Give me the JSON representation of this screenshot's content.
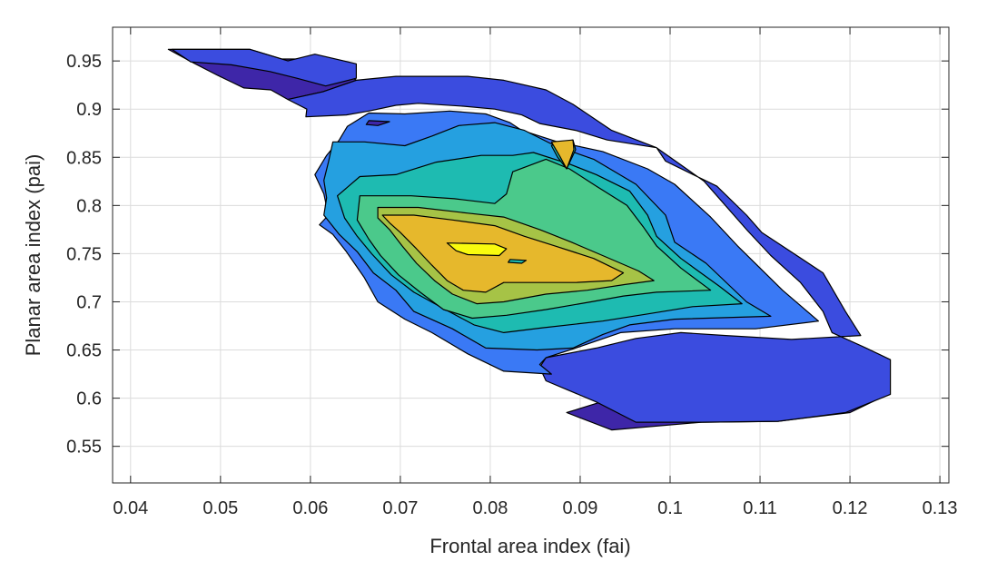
{
  "chart_data": {
    "type": "contourf",
    "title": "",
    "xlabel": "Frontal area index (fai)",
    "ylabel": "Planar area index (pai)",
    "xlim": [
      0.038,
      0.131
    ],
    "ylim": [
      0.512,
      0.985
    ],
    "xticks": [
      "0.04",
      "0.05",
      "0.06",
      "0.07",
      "0.08",
      "0.09",
      "0.1",
      "0.11",
      "0.12",
      "0.13"
    ],
    "yticks": [
      "0.55",
      "0.6",
      "0.65",
      "0.7",
      "0.75",
      "0.8",
      "0.85",
      "0.9",
      "0.95"
    ],
    "grid": true,
    "colormap": [
      "#3e26a8",
      "#3b4cdf",
      "#3a79f5",
      "#25a0e0",
      "#1ebbb1",
      "#4bc98b",
      "#a6c346",
      "#e6b82c",
      "#fbcf2b",
      "#f9fb0e"
    ],
    "regions": [
      {
        "level": 0,
        "polygon": [
          [
            0.0442,
            0.962
          ],
          [
            0.0533,
            0.962
          ],
          [
            0.0568,
            0.952
          ],
          [
            0.0592,
            0.952
          ],
          [
            0.0636,
            0.94
          ],
          [
            0.0651,
            0.93
          ],
          [
            0.0614,
            0.918
          ],
          [
            0.0575,
            0.91
          ],
          [
            0.0556,
            0.92
          ],
          [
            0.0526,
            0.922
          ],
          [
            0.0497,
            0.935
          ],
          [
            0.047,
            0.948
          ]
        ]
      },
      {
        "level": 0,
        "polygon": [
          [
            0.0935,
            0.567
          ],
          [
            0.1035,
            0.575
          ],
          [
            0.112,
            0.576
          ],
          [
            0.12,
            0.585
          ],
          [
            0.1242,
            0.604
          ],
          [
            0.1235,
            0.625
          ],
          [
            0.1225,
            0.642
          ],
          [
            0.1145,
            0.65
          ],
          [
            0.103,
            0.648
          ],
          [
            0.0995,
            0.632
          ],
          [
            0.0975,
            0.614
          ],
          [
            0.093,
            0.598
          ],
          [
            0.0885,
            0.585
          ]
        ]
      },
      {
        "level": 1,
        "polygon": [
          [
            0.0467,
            0.949
          ],
          [
            0.0512,
            0.946
          ],
          [
            0.0555,
            0.939
          ],
          [
            0.0585,
            0.932
          ],
          [
            0.0617,
            0.924
          ],
          [
            0.0651,
            0.932
          ],
          [
            0.0651,
            0.947
          ],
          [
            0.0605,
            0.957
          ],
          [
            0.0575,
            0.95
          ],
          [
            0.0533,
            0.962
          ],
          [
            0.0446,
            0.962
          ]
        ]
      },
      {
        "level": 1,
        "polygon": [
          [
            0.0595,
            0.892
          ],
          [
            0.064,
            0.894
          ],
          [
            0.0665,
            0.898
          ],
          [
            0.0695,
            0.904
          ],
          [
            0.072,
            0.906
          ],
          [
            0.077,
            0.903
          ],
          [
            0.0805,
            0.9
          ],
          [
            0.0835,
            0.894
          ],
          [
            0.0855,
            0.885
          ],
          [
            0.0895,
            0.878
          ],
          [
            0.093,
            0.868
          ],
          [
            0.0985,
            0.86
          ],
          [
            0.0995,
            0.846
          ],
          [
            0.1052,
            0.82
          ],
          [
            0.1085,
            0.79
          ],
          [
            0.1102,
            0.772
          ],
          [
            0.117,
            0.73
          ],
          [
            0.1195,
            0.69
          ],
          [
            0.1212,
            0.665
          ],
          [
            0.1135,
            0.661
          ],
          [
            0.1062,
            0.665
          ],
          [
            0.1012,
            0.668
          ],
          [
            0.0962,
            0.662
          ],
          [
            0.0918,
            0.652
          ],
          [
            0.0862,
            0.642
          ],
          [
            0.0855,
            0.632
          ],
          [
            0.0862,
            0.618
          ],
          [
            0.0918,
            0.596
          ],
          [
            0.0962,
            0.575
          ],
          [
            0.1035,
            0.575
          ],
          [
            0.112,
            0.576
          ],
          [
            0.1195,
            0.585
          ],
          [
            0.1245,
            0.604
          ],
          [
            0.1245,
            0.64
          ],
          [
            0.1218,
            0.652
          ],
          [
            0.118,
            0.668
          ],
          [
            0.117,
            0.69
          ],
          [
            0.1145,
            0.72
          ],
          [
            0.1112,
            0.748
          ],
          [
            0.1085,
            0.775
          ],
          [
            0.1038,
            0.825
          ],
          [
            0.0985,
            0.86
          ],
          [
            0.0935,
            0.878
          ],
          [
            0.0892,
            0.905
          ],
          [
            0.0862,
            0.92
          ],
          [
            0.0815,
            0.93
          ],
          [
            0.0775,
            0.934
          ],
          [
            0.0695,
            0.934
          ],
          [
            0.0651,
            0.93
          ],
          [
            0.0614,
            0.918
          ],
          [
            0.0575,
            0.91
          ],
          [
            0.0596,
            0.9
          ]
        ]
      },
      {
        "level": 2,
        "polygon": [
          [
            0.0665,
            0.896
          ],
          [
            0.0705,
            0.895
          ],
          [
            0.0755,
            0.898
          ],
          [
            0.0795,
            0.895
          ],
          [
            0.0822,
            0.886
          ],
          [
            0.0835,
            0.878
          ],
          [
            0.0875,
            0.866
          ],
          [
            0.0925,
            0.856
          ],
          [
            0.0975,
            0.838
          ],
          [
            0.1005,
            0.822
          ],
          [
            0.1045,
            0.788
          ],
          [
            0.1075,
            0.758
          ],
          [
            0.1125,
            0.712
          ],
          [
            0.1145,
            0.696
          ],
          [
            0.1165,
            0.68
          ],
          [
            0.1095,
            0.672
          ],
          [
            0.1005,
            0.672
          ],
          [
            0.0945,
            0.668
          ],
          [
            0.0895,
            0.652
          ],
          [
            0.0862,
            0.642
          ],
          [
            0.0855,
            0.635
          ],
          [
            0.0868,
            0.625
          ],
          [
            0.0815,
            0.628
          ],
          [
            0.0775,
            0.646
          ],
          [
            0.0735,
            0.668
          ],
          [
            0.0705,
            0.682
          ],
          [
            0.0675,
            0.7
          ],
          [
            0.066,
            0.725
          ],
          [
            0.064,
            0.752
          ],
          [
            0.0625,
            0.77
          ],
          [
            0.061,
            0.78
          ],
          [
            0.062,
            0.79
          ],
          [
            0.0615,
            0.812
          ],
          [
            0.0605,
            0.832
          ],
          [
            0.0618,
            0.852
          ],
          [
            0.0632,
            0.868
          ],
          [
            0.0641,
            0.882
          ]
        ]
      },
      {
        "level": 3,
        "polygon": [
          [
            0.0625,
            0.866
          ],
          [
            0.066,
            0.866
          ],
          [
            0.0705,
            0.862
          ],
          [
            0.0735,
            0.872
          ],
          [
            0.0765,
            0.883
          ],
          [
            0.0805,
            0.886
          ],
          [
            0.0838,
            0.878
          ],
          [
            0.0872,
            0.862
          ],
          [
            0.0915,
            0.848
          ],
          [
            0.0962,
            0.822
          ],
          [
            0.0995,
            0.79
          ],
          [
            0.1005,
            0.762
          ],
          [
            0.104,
            0.74
          ],
          [
            0.1085,
            0.7
          ],
          [
            0.1112,
            0.685
          ],
          [
            0.1005,
            0.682
          ],
          [
            0.0955,
            0.676
          ],
          [
            0.0925,
            0.666
          ],
          [
            0.0892,
            0.652
          ],
          [
            0.0852,
            0.65
          ],
          [
            0.0795,
            0.652
          ],
          [
            0.0758,
            0.672
          ],
          [
            0.0715,
            0.69
          ],
          [
            0.0695,
            0.712
          ],
          [
            0.067,
            0.73
          ],
          [
            0.0652,
            0.752
          ],
          [
            0.0632,
            0.77
          ],
          [
            0.0615,
            0.79
          ],
          [
            0.0618,
            0.808
          ],
          [
            0.0615,
            0.826
          ],
          [
            0.062,
            0.845
          ]
        ]
      },
      {
        "level": 4,
        "polygon": [
          [
            0.0655,
            0.83
          ],
          [
            0.0695,
            0.832
          ],
          [
            0.074,
            0.845
          ],
          [
            0.079,
            0.852
          ],
          [
            0.0825,
            0.852
          ],
          [
            0.0848,
            0.855
          ],
          [
            0.0888,
            0.843
          ],
          [
            0.0918,
            0.832
          ],
          [
            0.0955,
            0.815
          ],
          [
            0.0975,
            0.79
          ],
          [
            0.0985,
            0.768
          ],
          [
            0.1012,
            0.745
          ],
          [
            0.1055,
            0.716
          ],
          [
            0.108,
            0.698
          ],
          [
            0.1025,
            0.695
          ],
          [
            0.0972,
            0.687
          ],
          [
            0.0925,
            0.68
          ],
          [
            0.0858,
            0.673
          ],
          [
            0.0815,
            0.668
          ],
          [
            0.0782,
            0.676
          ],
          [
            0.0748,
            0.693
          ],
          [
            0.0715,
            0.71
          ],
          [
            0.069,
            0.728
          ],
          [
            0.0668,
            0.75
          ],
          [
            0.0652,
            0.768
          ],
          [
            0.0638,
            0.787
          ],
          [
            0.063,
            0.81
          ]
        ]
      },
      {
        "level": 5,
        "polygon": [
          [
            0.0655,
            0.81
          ],
          [
            0.0712,
            0.81
          ],
          [
            0.076,
            0.807
          ],
          [
            0.0805,
            0.802
          ],
          [
            0.0818,
            0.812
          ],
          [
            0.0825,
            0.835
          ],
          [
            0.0862,
            0.848
          ],
          [
            0.0888,
            0.838
          ],
          [
            0.0918,
            0.82
          ],
          [
            0.0952,
            0.8
          ],
          [
            0.097,
            0.778
          ],
          [
            0.0985,
            0.758
          ],
          [
            0.1012,
            0.735
          ],
          [
            0.1045,
            0.712
          ],
          [
            0.0985,
            0.71
          ],
          [
            0.0948,
            0.706
          ],
          [
            0.0912,
            0.7
          ],
          [
            0.0862,
            0.692
          ],
          [
            0.0818,
            0.686
          ],
          [
            0.078,
            0.683
          ],
          [
            0.0748,
            0.692
          ],
          [
            0.0722,
            0.71
          ],
          [
            0.0698,
            0.728
          ],
          [
            0.0678,
            0.748
          ],
          [
            0.0665,
            0.765
          ],
          [
            0.0652,
            0.785
          ]
        ]
      },
      {
        "level": 6,
        "polygon": [
          [
            0.0675,
            0.798
          ],
          [
            0.072,
            0.798
          ],
          [
            0.0775,
            0.792
          ],
          [
            0.0815,
            0.788
          ],
          [
            0.0855,
            0.775
          ],
          [
            0.089,
            0.762
          ],
          [
            0.0925,
            0.748
          ],
          [
            0.0965,
            0.732
          ],
          [
            0.0982,
            0.722
          ],
          [
            0.095,
            0.718
          ],
          [
            0.0908,
            0.712
          ],
          [
            0.0862,
            0.708
          ],
          [
            0.0815,
            0.7
          ],
          [
            0.0785,
            0.698
          ],
          [
            0.0758,
            0.708
          ],
          [
            0.0738,
            0.722
          ],
          [
            0.0718,
            0.74
          ],
          [
            0.0702,
            0.758
          ],
          [
            0.0688,
            0.775
          ],
          [
            0.0675,
            0.787
          ]
        ]
      },
      {
        "level": 7,
        "polygon": [
          [
            0.068,
            0.79
          ],
          [
            0.0715,
            0.79
          ],
          [
            0.0758,
            0.785
          ],
          [
            0.0805,
            0.779
          ],
          [
            0.0838,
            0.768
          ],
          [
            0.0872,
            0.758
          ],
          [
            0.0915,
            0.745
          ],
          [
            0.0948,
            0.73
          ],
          [
            0.0935,
            0.722
          ],
          [
            0.0895,
            0.72
          ],
          [
            0.0852,
            0.72
          ],
          [
            0.0815,
            0.72
          ],
          [
            0.0795,
            0.71
          ],
          [
            0.077,
            0.712
          ],
          [
            0.0752,
            0.722
          ],
          [
            0.0735,
            0.738
          ],
          [
            0.0718,
            0.755
          ],
          [
            0.07,
            0.772
          ],
          [
            0.0688,
            0.782
          ]
        ]
      },
      {
        "level": 9,
        "polygon": [
          [
            0.0752,
            0.761
          ],
          [
            0.0805,
            0.76
          ],
          [
            0.0818,
            0.755
          ],
          [
            0.081,
            0.748
          ],
          [
            0.0775,
            0.749
          ],
          [
            0.0762,
            0.753
          ]
        ]
      },
      {
        "level": 4,
        "polygon": [
          [
            0.0875,
            0.865
          ],
          [
            0.0892,
            0.868
          ],
          [
            0.0895,
            0.858
          ],
          [
            0.0885,
            0.838
          ],
          [
            0.0875,
            0.85
          ],
          [
            0.0868,
            0.862
          ]
        ]
      },
      {
        "level": 7,
        "polygon": [
          [
            0.0868,
            0.866
          ],
          [
            0.0892,
            0.868
          ],
          [
            0.0893,
            0.858
          ],
          [
            0.0885,
            0.838
          ],
          [
            0.0878,
            0.85
          ]
        ]
      },
      {
        "level": 0,
        "polygon": [
          [
            0.0665,
            0.888
          ],
          [
            0.0688,
            0.887
          ],
          [
            0.0675,
            0.883
          ],
          [
            0.0662,
            0.884
          ]
        ]
      },
      {
        "level": 4,
        "polygon": [
          [
            0.0822,
            0.744
          ],
          [
            0.084,
            0.743
          ],
          [
            0.0835,
            0.74
          ],
          [
            0.082,
            0.741
          ]
        ]
      }
    ]
  }
}
